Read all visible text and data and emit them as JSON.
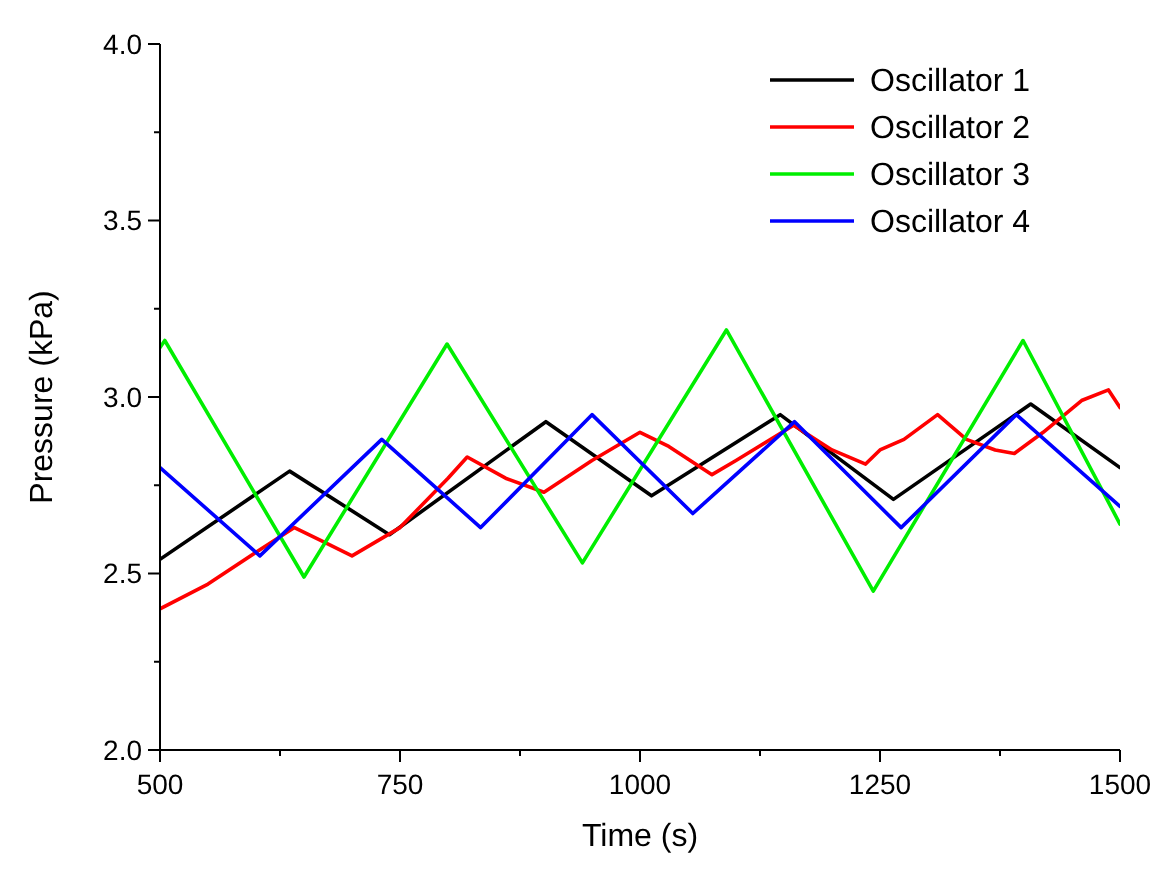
{
  "chart_data": {
    "type": "line",
    "xlabel": "Time (s)",
    "ylabel": "Pressure (kPa)",
    "xlim": [
      500,
      1500
    ],
    "ylim": [
      2.0,
      4.0
    ],
    "xticks": [
      500,
      {
        "value": 625,
        "label": null
      },
      750,
      {
        "value": 875,
        "label": null
      },
      1000,
      {
        "value": 1125,
        "label": null
      },
      1250,
      {
        "value": 1375,
        "label": null
      },
      1500
    ],
    "yticks": [
      {
        "value": 2.0,
        "label": "2.0"
      },
      {
        "value": 2.25,
        "label": null
      },
      2.5,
      {
        "value": 2.75,
        "label": null
      },
      {
        "value": 3.0,
        "label": "3.0"
      },
      {
        "value": 3.25,
        "label": null
      },
      3.5,
      {
        "value": 3.75,
        "label": null
      },
      {
        "value": 4.0,
        "label": "4.0"
      }
    ],
    "grid": false,
    "legend": "top right",
    "marker": "none",
    "line_style": "solid",
    "series": [
      {
        "name": "Oscillator 1",
        "color": "#000000",
        "x": [
          500,
          635,
          739,
          902,
          1012,
          1146,
          1264,
          1407,
          1500
        ],
        "values": [
          2.54,
          2.79,
          2.61,
          2.93,
          2.72,
          2.95,
          2.71,
          2.98,
          2.8
        ]
      },
      {
        "name": "Oscillator 2",
        "color": "#ff0000",
        "x": [
          500,
          550,
          600,
          640,
          670,
          700,
          750,
          800,
          820,
          860,
          900,
          950,
          1000,
          1030,
          1075,
          1100,
          1160,
          1200,
          1235,
          1250,
          1275,
          1310,
          1340,
          1370,
          1390,
          1420,
          1460,
          1488,
          1500
        ],
        "values": [
          2.4,
          2.47,
          2.56,
          2.63,
          2.59,
          2.55,
          2.63,
          2.77,
          2.83,
          2.77,
          2.73,
          2.82,
          2.9,
          2.86,
          2.78,
          2.82,
          2.92,
          2.85,
          2.81,
          2.85,
          2.88,
          2.95,
          2.88,
          2.85,
          2.84,
          2.9,
          2.99,
          3.02,
          2.97
        ]
      },
      {
        "name": "Oscillator 3",
        "color": "#00ee00",
        "x": [
          500,
          505,
          650,
          799,
          940,
          1090,
          1243,
          1399,
          1500
        ],
        "values": [
          3.14,
          3.16,
          2.49,
          3.15,
          2.53,
          3.19,
          2.45,
          3.16,
          2.64
        ]
      },
      {
        "name": "Oscillator 4",
        "color": "#0000ff",
        "x": [
          500,
          604,
          731,
          834,
          950,
          1055,
          1161,
          1272,
          1392,
          1500
        ],
        "values": [
          2.8,
          2.55,
          2.88,
          2.63,
          2.95,
          2.67,
          2.93,
          2.63,
          2.95,
          2.69
        ]
      }
    ]
  }
}
